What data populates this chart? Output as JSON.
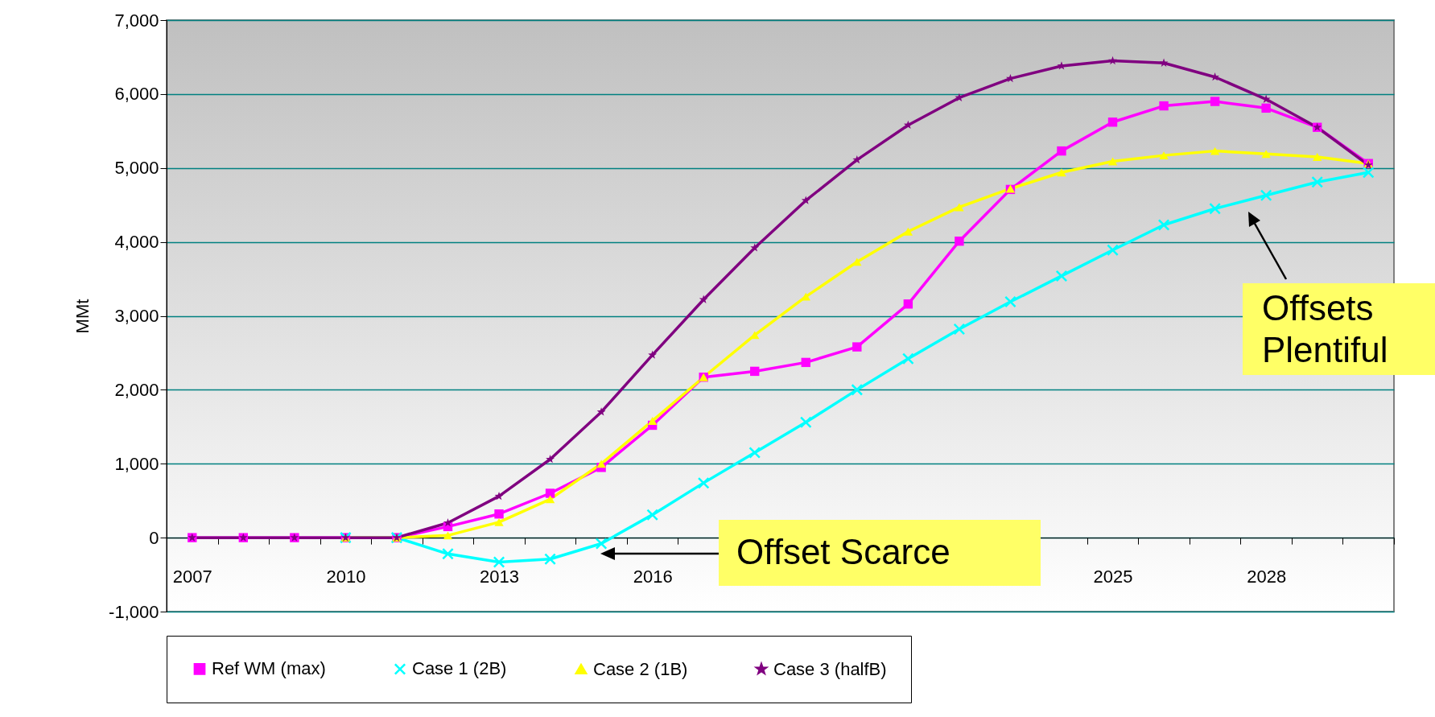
{
  "chart_data": {
    "type": "line",
    "ylabel": "MMt",
    "categories": [
      "2007",
      null,
      null,
      "2010",
      null,
      null,
      "2013",
      null,
      null,
      "2016",
      null,
      null,
      null,
      null,
      null,
      null,
      null,
      null,
      "2025",
      null,
      null,
      "2028",
      null,
      null
    ],
    "series": [
      {
        "name": "Ref WM (max)",
        "color": "#ff00ff",
        "marker": "square",
        "values": [
          0,
          0,
          0,
          0,
          0,
          150,
          320,
          600,
          950,
          1520,
          2170,
          2250,
          2370,
          2580,
          3160,
          4010,
          4710,
          5230,
          5620,
          5840,
          5900,
          5810,
          5550,
          5060
        ]
      },
      {
        "name": "Case 1 (2B)",
        "color": "#00ffff",
        "marker": "cross",
        "values": [
          null,
          null,
          null,
          0,
          0,
          -220,
          -330,
          -290,
          -80,
          310,
          740,
          1150,
          1560,
          2000,
          2420,
          2820,
          3190,
          3540,
          3890,
          4230,
          4450,
          4630,
          4810,
          4940
        ]
      },
      {
        "name": "Case 2 (1B)",
        "color": "#ffff00",
        "marker": "triangle",
        "values": [
          null,
          null,
          null,
          0,
          0,
          30,
          210,
          520,
          1000,
          1580,
          2170,
          2740,
          3260,
          3730,
          4140,
          4470,
          4720,
          4940,
          5090,
          5170,
          5230,
          5190,
          5150,
          5060
        ]
      },
      {
        "name": "Case 3 (halfB)",
        "color": "#800080",
        "marker": "star",
        "values": [
          0,
          0,
          0,
          0,
          0,
          200,
          560,
          1060,
          1700,
          2470,
          3220,
          3920,
          4560,
          5110,
          5580,
          5950,
          6210,
          6380,
          6450,
          6420,
          6230,
          5930,
          5550,
          5040
        ]
      }
    ],
    "ylim": [
      -1000,
      7000
    ],
    "yticks": [
      {
        "value": -1000,
        "label": "-1,000"
      },
      {
        "value": 0,
        "label": "0"
      },
      {
        "value": 1000,
        "label": "1,000"
      },
      {
        "value": 2000,
        "label": "2,000"
      },
      {
        "value": 3000,
        "label": "3,000"
      },
      {
        "value": 4000,
        "label": "4,000"
      },
      {
        "value": 5000,
        "label": "5,000"
      },
      {
        "value": 6000,
        "label": "6,000"
      },
      {
        "value": 7000,
        "label": "7,000"
      }
    ],
    "grid": "y",
    "legend": "bottom",
    "line_style": "solid",
    "annotations": [
      "Offset Scarce",
      "Offsets Plentiful"
    ]
  }
}
